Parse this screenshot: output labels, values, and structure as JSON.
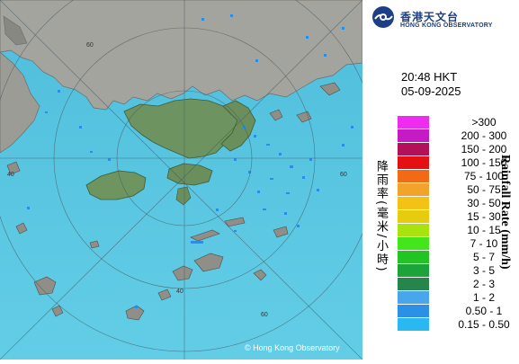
{
  "header": {
    "logo_zh": "香港天文台",
    "logo_en": "HONG KONG OBSERVATORY",
    "time": "20:48 HKT",
    "date": "05-09-2025"
  },
  "legend": {
    "title_en": "Rainfall Rate (mm/h)",
    "title_zh": "降雨率(毫米/小時)",
    "items": [
      {
        "label": ">300",
        "color": "#ee2cf0"
      },
      {
        "label": "200 - 300",
        "color": "#c51bc5"
      },
      {
        "label": "150 - 200",
        "color": "#b21059"
      },
      {
        "label": "100 - 150",
        "color": "#e31111"
      },
      {
        "label": "75 - 100",
        "color": "#f26a13"
      },
      {
        "label": "50 - 75",
        "color": "#f2a32c"
      },
      {
        "label": "30 - 50",
        "color": "#f4c215"
      },
      {
        "label": "15 - 30",
        "color": "#e5cd0d"
      },
      {
        "label": "10 - 15",
        "color": "#a9e30e"
      },
      {
        "label": "7 - 10",
        "color": "#43e51b"
      },
      {
        "label": "5 - 7",
        "color": "#22c423"
      },
      {
        "label": "3 - 5",
        "color": "#1ca43b"
      },
      {
        "label": "2 - 3",
        "color": "#24864a"
      },
      {
        "label": "1 - 2",
        "color": "#4aa6ea"
      },
      {
        "label": "0.50 - 1",
        "color": "#2c90e6"
      },
      {
        "label": "0.15 - 0.50",
        "color": "#2ab8f0"
      }
    ]
  },
  "map": {
    "range_labels": [
      "60",
      "40",
      "60",
      "60",
      "40"
    ],
    "copyright": "© Hong Kong Observatory",
    "colors": {
      "sea": "#53c3df",
      "land_mainland": "#9a9a94",
      "land_hk": "#6a8f5a"
    }
  }
}
